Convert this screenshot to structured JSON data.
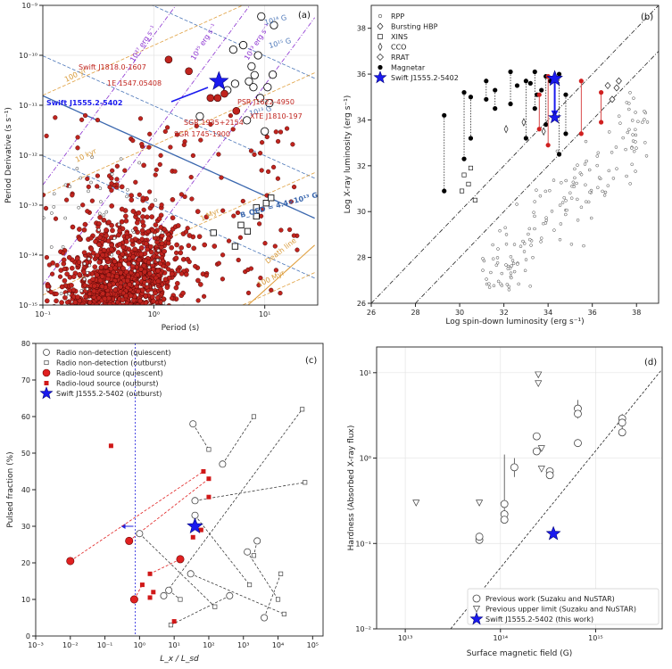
{
  "chart_data": [
    {
      "panel": "(a)",
      "type": "scatter",
      "xlabel": "Period (s)",
      "ylabel": "Period Derivative (s s⁻¹)",
      "xscale": "log",
      "yscale": "log",
      "xlim": [
        0.1,
        30
      ],
      "ylim": [
        1e-15,
        1e-09
      ],
      "xticks": [
        {
          "v": 0.1,
          "label": "10⁻¹"
        },
        {
          "v": 1,
          "label": "10⁰"
        },
        {
          "v": 10,
          "label": "10¹"
        }
      ],
      "yticks": [
        {
          "v": 1e-15,
          "label": "10⁻¹⁵"
        },
        {
          "v": 1e-14,
          "label": "10⁻¹⁴"
        },
        {
          "v": 1e-13,
          "label": "10⁻¹³"
        },
        {
          "v": 1e-12,
          "label": "10⁻¹²"
        },
        {
          "v": 1e-11,
          "label": "10⁻¹¹"
        },
        {
          "v": 1e-10,
          "label": "10⁻¹⁰"
        },
        {
          "v": 1e-09,
          "label": "10⁻⁹"
        }
      ],
      "bfield_lines": [
        {
          "log_b": 15,
          "label": "10¹⁵ G"
        },
        {
          "log_b": 14,
          "label": "10¹⁴ G"
        },
        {
          "log_b": 13,
          "label": "10¹³ G"
        }
      ],
      "qed_line": {
        "log_b": 13.6,
        "label": "B_QED = 4.4×10¹³ G"
      },
      "age_lines": [
        {
          "log_age_yr": 2,
          "label": "100 yr"
        },
        {
          "log_age_yr": 4,
          "label": "10 kyr"
        },
        {
          "log_age_yr": 6,
          "label": "1 Myr"
        },
        {
          "log_age_yr": 8,
          "label": "100 Myr"
        }
      ],
      "edot_lines": [
        {
          "log_edot": 37,
          "label": "10³⁷ erg s⁻¹"
        },
        {
          "log_edot": 35,
          "label": "10³⁵ erg s⁻¹"
        },
        {
          "log_edot": 33,
          "label": "10³³ erg s⁻¹"
        }
      ],
      "death_line_label": "Death line",
      "named_sources": [
        {
          "name": "Swift J1818.0-1607",
          "p": 1.36,
          "pdot": 8.2e-11
        },
        {
          "name": "1E 1547.05408",
          "p": 2.07,
          "pdot": 4.8e-11
        },
        {
          "name": "PSR J1622-4950",
          "p": 4.33,
          "pdot": 1.7e-11
        },
        {
          "name": "XTE J1810-197",
          "p": 5.54,
          "pdot": 7.7e-12
        },
        {
          "name": "SGR 1935+2154",
          "p": 3.24,
          "pdot": 1.4e-11
        },
        {
          "name": "SGR 1745-1900",
          "p": 3.76,
          "pdot": 1.4e-11
        }
      ],
      "target": {
        "name": "Swift J1555.2-5402",
        "p": 3.86,
        "pdot": 3e-11
      },
      "magnetars_open": [
        {
          "p": 5.2,
          "pdot": 1.3e-10
        },
        {
          "p": 6.4,
          "pdot": 1.6e-10
        },
        {
          "p": 7.6,
          "pdot": 6e-11
        },
        {
          "p": 7.2,
          "pdot": 3e-11
        },
        {
          "p": 8.7,
          "pdot": 1e-10
        },
        {
          "p": 10.6,
          "pdot": 2.3e-11
        },
        {
          "p": 11.8,
          "pdot": 4.1e-11
        },
        {
          "p": 9.1,
          "pdot": 1.4e-11
        },
        {
          "p": 6.9,
          "pdot": 5e-12
        },
        {
          "p": 10.0,
          "pdot": 3e-12
        },
        {
          "p": 4.6,
          "pdot": 2e-11
        },
        {
          "p": 2.6,
          "pdot": 6e-12
        },
        {
          "p": 5.4,
          "pdot": 2.7e-11
        },
        {
          "p": 7.9,
          "pdot": 2.3e-11
        },
        {
          "p": 11.0,
          "pdot": 1.1e-11
        },
        {
          "p": 12.1,
          "pdot": 4e-10
        },
        {
          "p": 9.3,
          "pdot": 6e-10
        },
        {
          "p": 8.1,
          "pdot": 4e-11
        }
      ],
      "xins_squares": [
        {
          "p": 3.45,
          "pdot": 2.8e-14
        },
        {
          "p": 7.0,
          "pdot": 3e-14
        },
        {
          "p": 8.4,
          "pdot": 9e-14
        },
        {
          "p": 10.3,
          "pdot": 1.1e-13
        },
        {
          "p": 11.4,
          "pdot": 1.4e-13
        },
        {
          "p": 8.4,
          "pdot": 6e-14
        },
        {
          "p": 6.1,
          "pdot": 4e-14
        },
        {
          "p": 5.4,
          "pdot": 1.5e-14
        }
      ]
    },
    {
      "panel": "(b)",
      "type": "scatter",
      "xlabel": "Log spin-down luminosity (erg s⁻¹)",
      "ylabel": "Log X-ray luminosity (erg s⁻¹)",
      "xlim": [
        26,
        39
      ],
      "ylim": [
        26,
        39
      ],
      "xticks": [
        26,
        28,
        30,
        32,
        34,
        36,
        38
      ],
      "yticks": [
        26,
        28,
        30,
        32,
        34,
        36,
        38
      ],
      "legend": [
        "RPP",
        "Bursting HBP",
        "XINS",
        "CCO",
        "RRAT",
        "Magnetar",
        "Swift J1555.2-5402"
      ],
      "target": {
        "edot": 34.3,
        "lx_high": 35.8,
        "lx_low": 34.1
      },
      "magnetar_pairs": [
        {
          "x": 29.3,
          "y1": 34.2,
          "y2": 30.9
        },
        {
          "x": 30.2,
          "y1": 35.2,
          "y2": 32.3
        },
        {
          "x": 30.5,
          "y1": 35.0,
          "y2": 33.2
        },
        {
          "x": 31.2,
          "y1": 35.7,
          "y2": 34.9
        },
        {
          "x": 31.6,
          "y1": 35.3,
          "y2": 34.5
        },
        {
          "x": 32.3,
          "y1": 36.1,
          "y2": 34.7
        },
        {
          "x": 33.0,
          "y1": 35.7,
          "y2": 33.2
        },
        {
          "x": 33.4,
          "y1": 36.1,
          "y2": 34.5
        },
        {
          "x": 33.9,
          "y1": 35.9,
          "y2": 33.8
        },
        {
          "x": 34.5,
          "y1": 36.0,
          "y2": 32.5
        },
        {
          "x": 34.8,
          "y1": 35.1,
          "y2": 33.4
        }
      ],
      "magnetar_extra": [
        {
          "x": 32.6,
          "y": 35.5
        },
        {
          "x": 33.2,
          "y": 35.6
        },
        {
          "x": 33.7,
          "y": 35.3
        },
        {
          "x": 34.1,
          "y": 35.7
        },
        {
          "x": 33.5,
          "y": 35.1
        }
      ],
      "red_pairs": [
        {
          "x": 33.6,
          "y1": 35.1,
          "y2": 33.6
        },
        {
          "x": 34.0,
          "y1": 35.9,
          "y2": 32.9
        },
        {
          "x": 35.5,
          "y1": 35.7,
          "y2": 33.4
        },
        {
          "x": 36.4,
          "y1": 35.2,
          "y2": 33.9
        }
      ],
      "hbp_diamonds": [
        {
          "x": 36.7,
          "y": 35.5
        },
        {
          "x": 37.1,
          "y": 35.4
        },
        {
          "x": 36.9,
          "y": 34.9
        },
        {
          "x": 37.2,
          "y": 35.7
        }
      ],
      "xins_squares": [
        {
          "x": 30.2,
          "y": 31.6
        },
        {
          "x": 30.5,
          "y": 31.9
        },
        {
          "x": 30.1,
          "y": 30.9
        },
        {
          "x": 30.7,
          "y": 30.5
        },
        {
          "x": 30.4,
          "y": 31.2
        }
      ],
      "cco_diamonds": [
        {
          "x": 32.1,
          "y": 33.6
        },
        {
          "x": 33.8,
          "y": 33.5
        },
        {
          "x": 32.9,
          "y": 33.9
        }
      ]
    },
    {
      "panel": "(c)",
      "type": "scatter",
      "xlabel": "L_x / L_sd",
      "ylabel": "Pulsed fraction (%)",
      "xscale": "log",
      "xlim": [
        0.001,
        200000
      ],
      "ylim": [
        0,
        80
      ],
      "xticks": [
        {
          "v": 0.001,
          "label": "10⁻³"
        },
        {
          "v": 0.01,
          "label": "10⁻²"
        },
        {
          "v": 0.1,
          "label": "10⁻¹"
        },
        {
          "v": 1,
          "label": "10⁰"
        },
        {
          "v": 10,
          "label": "10¹"
        },
        {
          "v": 100,
          "label": "10²"
        },
        {
          "v": 1000,
          "label": "10³"
        },
        {
          "v": 10000,
          "label": "10⁴"
        },
        {
          "v": 100000,
          "label": "10⁵"
        }
      ],
      "yticks": [
        0,
        10,
        20,
        30,
        40,
        50,
        60,
        70,
        80
      ],
      "legend": [
        "Radio non-detection (quiescent)",
        "Radio non-detection (outburst)",
        "Radio-loud source (quiescent)",
        "Radio-loud source (outburst)",
        "Swift J1555.2-5402 (outburst)"
      ],
      "vertical_line_x": 0.75,
      "target": {
        "x": 40,
        "y": 30
      },
      "quiescent_open": [
        {
          "x": 35,
          "y": 58
        },
        {
          "x": 250,
          "y": 47
        },
        {
          "x": 40,
          "y": 37
        },
        {
          "x": 1.0,
          "y": 28
        },
        {
          "x": 40,
          "y": 33
        },
        {
          "x": 1300,
          "y": 23
        },
        {
          "x": 5,
          "y": 11
        },
        {
          "x": 7,
          "y": 12.5
        },
        {
          "x": 400,
          "y": 11
        },
        {
          "x": 4000,
          "y": 5
        },
        {
          "x": 30,
          "y": 17
        },
        {
          "x": 2500,
          "y": 26
        }
      ],
      "outburst_open": [
        {
          "x": 100,
          "y": 51
        },
        {
          "x": 2000,
          "y": 60
        },
        {
          "x": 60000,
          "y": 42
        },
        {
          "x": 150,
          "y": 8
        },
        {
          "x": 1500,
          "y": 14
        },
        {
          "x": 10000,
          "y": 10
        },
        {
          "x": 50000,
          "y": 62
        },
        {
          "x": 15,
          "y": 10
        },
        {
          "x": 8,
          "y": 3
        },
        {
          "x": 12000,
          "y": 17
        },
        {
          "x": 15000,
          "y": 6
        },
        {
          "x": 2000,
          "y": 22
        }
      ],
      "quiescent_red": [
        {
          "x": 0.01,
          "y": 20.5
        },
        {
          "x": 0.5,
          "y": 26
        },
        {
          "x": 0.7,
          "y": 10
        },
        {
          "x": 15,
          "y": 21
        }
      ],
      "outburst_red": [
        {
          "x": 0.15,
          "y": 52
        },
        {
          "x": 70,
          "y": 45
        },
        {
          "x": 100,
          "y": 43
        },
        {
          "x": 1.2,
          "y": 14
        },
        {
          "x": 2,
          "y": 17
        },
        {
          "x": 2.5,
          "y": 12
        },
        {
          "x": 60,
          "y": 29
        },
        {
          "x": 35,
          "y": 27
        },
        {
          "x": 100,
          "y": 38
        },
        {
          "x": 10,
          "y": 4
        },
        {
          "x": 2,
          "y": 10.5
        }
      ]
    },
    {
      "panel": "(d)",
      "type": "scatter",
      "xlabel": "Surface magnetic field (G)",
      "ylabel": "Hardness (Absorbed X-ray flux)",
      "xscale": "log",
      "yscale": "log",
      "xlim": [
        5000000000000.0,
        5000000000000000.0
      ],
      "ylim": [
        0.01,
        20
      ],
      "xticks": [
        {
          "v": 10000000000000.0,
          "label": "10¹³"
        },
        {
          "v": 100000000000000.0,
          "label": "10¹⁴"
        },
        {
          "v": 1000000000000000.0,
          "label": "10¹⁵"
        }
      ],
      "yticks": [
        {
          "v": 0.01,
          "label": "10⁻²"
        },
        {
          "v": 0.1,
          "label": "10⁻¹"
        },
        {
          "v": 1,
          "label": "10⁰"
        },
        {
          "v": 10,
          "label": "10¹"
        }
      ],
      "legend": [
        "Previous work (Suzaku and NuSTAR)",
        "Previous upper limit (Suzaku and NuSTAR)",
        "Swift J1555.2-5402 (this work)"
      ],
      "target": {
        "b": 360000000000000.0,
        "h": 0.13
      },
      "previous": [
        {
          "b": 60000000000000.0,
          "h": 0.11
        },
        {
          "b": 60000000000000.0,
          "h": 0.12
        },
        {
          "b": 110000000000000.0,
          "h": 0.29
        },
        {
          "b": 110000000000000.0,
          "h": 0.22
        },
        {
          "b": 110000000000000.0,
          "h": 0.19
        },
        {
          "b": 140000000000000.0,
          "h": 0.78
        },
        {
          "b": 240000000000000.0,
          "h": 1.8
        },
        {
          "b": 240000000000000.0,
          "h": 1.2
        },
        {
          "b": 330000000000000.0,
          "h": 0.7
        },
        {
          "b": 330000000000000.0,
          "h": 0.63
        },
        {
          "b": 650000000000000.0,
          "h": 3.8
        },
        {
          "b": 650000000000000.0,
          "h": 3.3
        },
        {
          "b": 650000000000000.0,
          "h": 1.5
        },
        {
          "b": 1900000000000000.0,
          "h": 2.9
        },
        {
          "b": 1900000000000000.0,
          "h": 2.6
        },
        {
          "b": 1900000000000000.0,
          "h": 2.0
        }
      ],
      "upper_limits": [
        {
          "b": 13000000000000.0,
          "h": 0.3
        },
        {
          "b": 60000000000000.0,
          "h": 0.3
        },
        {
          "b": 250000000000000.0,
          "h": 9.5
        },
        {
          "b": 250000000000000.0,
          "h": 7.5
        },
        {
          "b": 270000000000000.0,
          "h": 1.3
        },
        {
          "b": 270000000000000.0,
          "h": 0.75
        }
      ]
    }
  ]
}
